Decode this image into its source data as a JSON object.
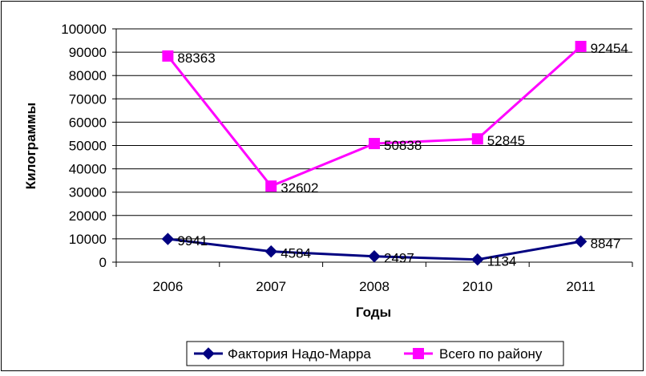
{
  "chart_data": {
    "type": "line",
    "categories": [
      "2006",
      "2007",
      "2008",
      "2010",
      "2011"
    ],
    "series": [
      {
        "name": "Фактория Надо-Марра",
        "values": [
          9941,
          4584,
          2497,
          1134,
          8847
        ],
        "color": "#000080",
        "marker": "diamond"
      },
      {
        "name": "Всего по району",
        "values": [
          88363,
          32602,
          50838,
          52845,
          92454
        ],
        "color": "#ff00ff",
        "marker": "square"
      }
    ],
    "data_labels": {
      "series0": [
        "9941",
        "4584",
        "2497",
        "1134",
        "8847"
      ],
      "series1": [
        "88363",
        "32602",
        "50838",
        "52845",
        "92454"
      ]
    },
    "xlabel": "Годы",
    "ylabel": "Килограммы",
    "ylim": [
      0,
      100000
    ],
    "yticks": [
      "0",
      "10000",
      "20000",
      "30000",
      "40000",
      "50000",
      "60000",
      "70000",
      "80000",
      "90000",
      "100000"
    ],
    "grid": true,
    "legend": "bottom"
  }
}
